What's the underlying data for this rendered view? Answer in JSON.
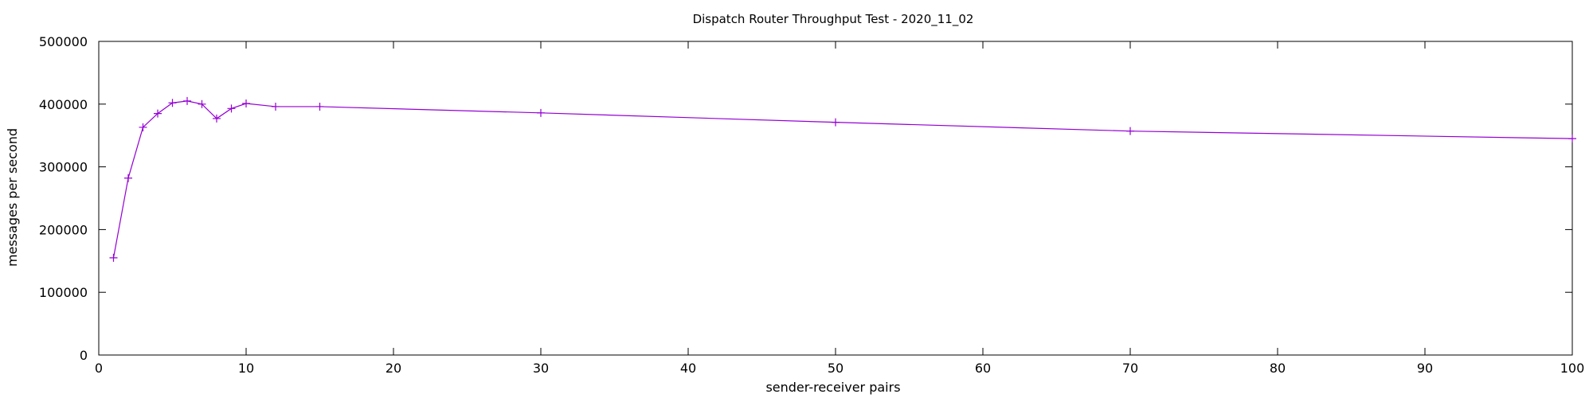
{
  "chart_data": {
    "type": "line",
    "title": "Dispatch Router Throughput Test - 2020_11_02",
    "xlabel": "sender-receiver pairs",
    "ylabel": "messages per second",
    "xlim": [
      0,
      100
    ],
    "ylim": [
      0,
      500000
    ],
    "x_ticks": [
      0,
      10,
      20,
      30,
      40,
      50,
      60,
      70,
      80,
      90,
      100
    ],
    "y_ticks": [
      0,
      100000,
      200000,
      300000,
      400000,
      500000
    ],
    "grid": false,
    "legend": "none",
    "series": [
      {
        "x": [
          1,
          2,
          3,
          4,
          5,
          6,
          7,
          8,
          9,
          10,
          12,
          15,
          30,
          50,
          70,
          100
        ],
        "y": [
          155000,
          282000,
          363000,
          385000,
          402000,
          405000,
          400000,
          377000,
          393000,
          401000,
          396000,
          396000,
          386000,
          371000,
          357000,
          345000
        ],
        "color": "#9400d3",
        "marker": "plus"
      }
    ]
  }
}
